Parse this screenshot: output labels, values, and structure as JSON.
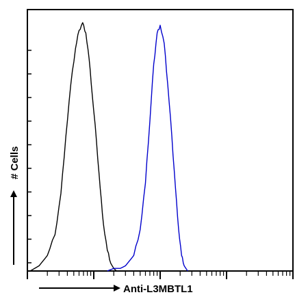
{
  "chart_data": {
    "type": "line",
    "title": "",
    "xlabel": "Anti-L3MBTL1",
    "ylabel": "# Cells",
    "x_scale": "log",
    "xlim": [
      1,
      10000
    ],
    "ylim": [
      0,
      100
    ],
    "grid": false,
    "legend": "none",
    "series": [
      {
        "color": "#000000",
        "x": [
          1.1,
          1.5,
          2.0,
          2.6,
          3.2,
          3.8,
          4.5,
          5.3,
          6.0,
          6.8,
          7.6,
          8.5,
          9.5,
          11,
          12.5,
          14,
          16,
          18,
          20,
          22
        ],
        "y": [
          0,
          2,
          6,
          14,
          30,
          52,
          72,
          86,
          93,
          96,
          92,
          82,
          68,
          50,
          32,
          18,
          8,
          3,
          1,
          0
        ]
      },
      {
        "color": "#0000cc",
        "x": [
          16,
          20,
          25,
          30,
          40,
          50,
          60,
          70,
          80,
          90,
          100,
          115,
          130,
          150,
          170,
          190,
          210,
          230,
          260
        ],
        "y": [
          0,
          1,
          1,
          2,
          6,
          16,
          34,
          58,
          80,
          92,
          95,
          88,
          72,
          52,
          32,
          16,
          6,
          2,
          0
        ]
      }
    ]
  }
}
